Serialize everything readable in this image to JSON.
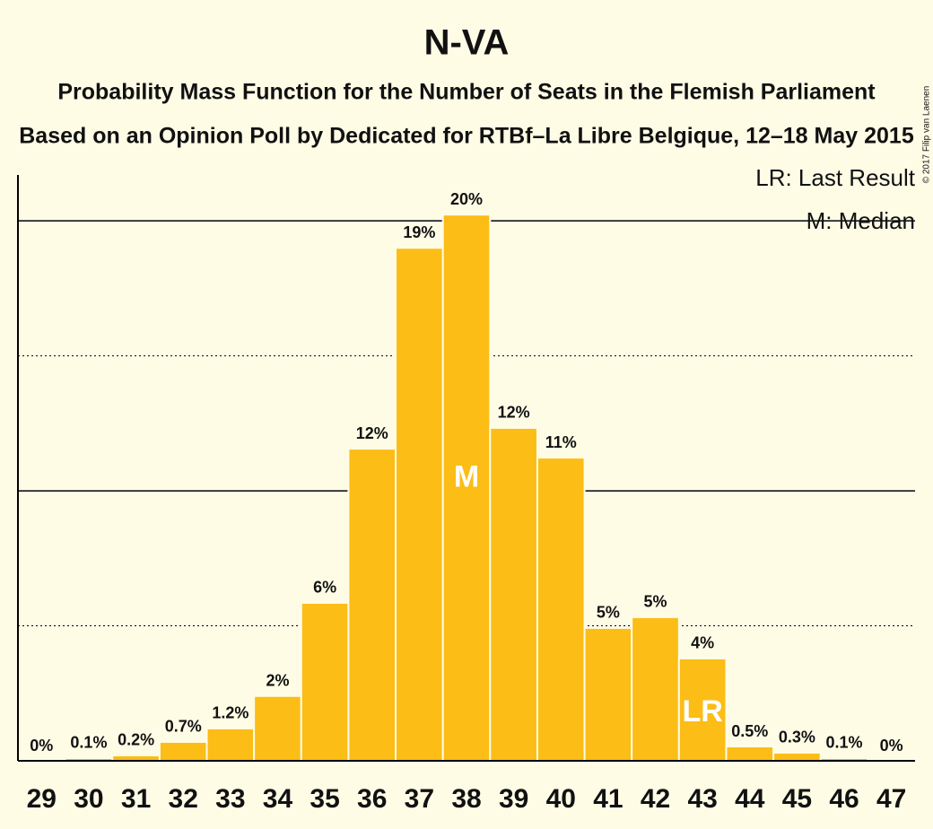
{
  "chart_data": {
    "type": "bar",
    "title": "N-VA",
    "subtitle": "Probability Mass Function for the Number of Seats in the Flemish Parliament",
    "subtitle2": "Based on an Opinion Poll by Dedicated for RTBf–La Libre Belgique, 12–18 May 2015",
    "legend": [
      "LR: Last Result",
      "M: Median"
    ],
    "copyright": "© 2017 Filip van Laenen",
    "categories": [
      "29",
      "30",
      "31",
      "32",
      "33",
      "34",
      "35",
      "36",
      "37",
      "38",
      "39",
      "40",
      "41",
      "42",
      "43",
      "44",
      "45",
      "46",
      "47"
    ],
    "values": [
      0,
      0.1,
      0.2,
      0.7,
      1.2,
      2.4,
      5.85,
      11.56,
      19.0,
      20.23,
      12.33,
      11.23,
      4.92,
      5.32,
      3.79,
      0.53,
      0.3,
      0.1,
      0
    ],
    "value_labels": [
      "0%",
      "0.1%",
      "0.2%",
      "0.7%",
      "1.2%",
      "2%",
      "6%",
      "12%",
      "19%",
      "20%",
      "12%",
      "11%",
      "5%",
      "5%",
      "4%",
      "0.5%",
      "0.3%",
      "0.1%",
      "0%"
    ],
    "annotations": [
      {
        "category": "38",
        "label": "M"
      },
      {
        "category": "43",
        "label": "LR"
      }
    ],
    "color": "#fbbd16",
    "ylim": [
      0,
      21.7
    ],
    "yticks": [
      0,
      5,
      10,
      15,
      20
    ],
    "grid": true
  }
}
